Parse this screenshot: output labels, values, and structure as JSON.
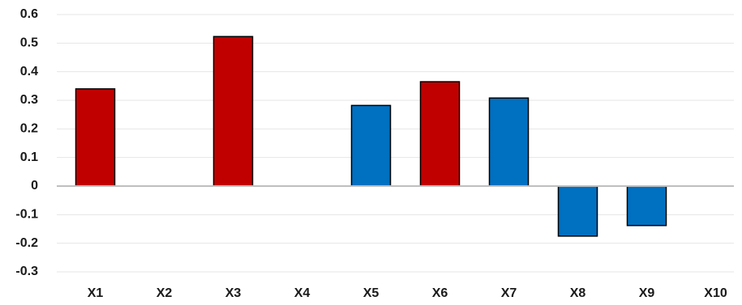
{
  "chart_data": {
    "type": "bar",
    "title": "",
    "xlabel": "",
    "ylabel": "",
    "categories": [
      "X1",
      "X2",
      "X3",
      "X4",
      "X5",
      "X6",
      "X7",
      "X8",
      "X9",
      "X10"
    ],
    "values": [
      0.34,
      0,
      0.523,
      0,
      0.282,
      0.365,
      0.308,
      -0.175,
      -0.138,
      0
    ],
    "bar_colors": [
      "#c00000",
      null,
      "#c00000",
      null,
      "#0070c0",
      "#c00000",
      "#0070c0",
      "#0070c0",
      "#0070c0",
      null
    ],
    "ylim": [
      -0.3,
      0.6
    ],
    "yticks": [
      0.6,
      0.5,
      0.4,
      0.3,
      0.2,
      0.1,
      0,
      -0.1,
      -0.2,
      -0.3
    ],
    "ytick_labels": [
      "0.6",
      "0.5",
      "0.4",
      "0.3",
      "0.2",
      "0.1",
      "0",
      "-0.1",
      "-0.2",
      "-0.3"
    ],
    "grid": true,
    "legend": false
  }
}
